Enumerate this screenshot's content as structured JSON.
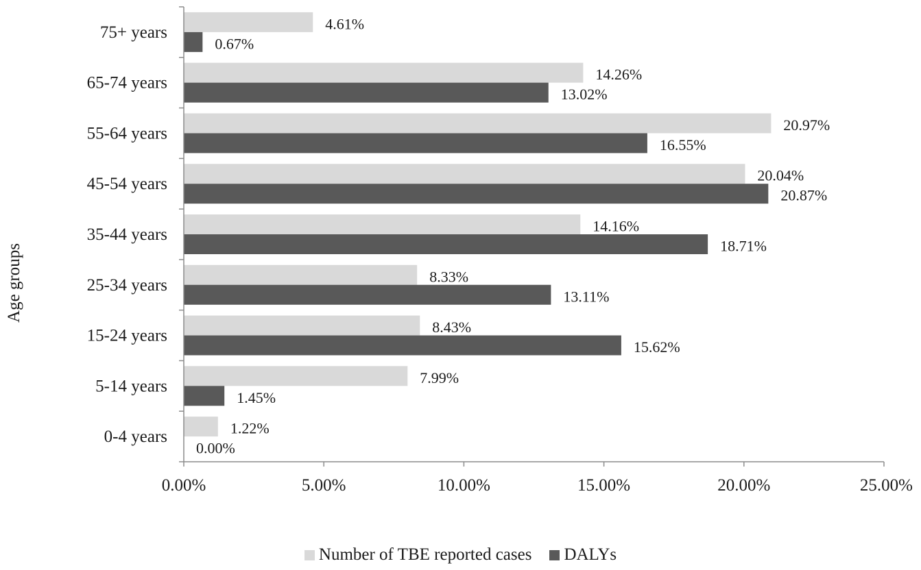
{
  "chart_data": {
    "type": "bar",
    "orientation": "horizontal",
    "title": "",
    "xlabel": "",
    "ylabel": "Age groups",
    "categories": [
      "0-4 years",
      "5-14 years",
      "15-24 years",
      "25-34 years",
      "35-44 years",
      "45-54 years",
      "55-64 years",
      "65-74 years",
      "75+ years"
    ],
    "series": [
      {
        "name": "Number of TBE reported cases",
        "color": "#d9d9d9",
        "values": [
          1.22,
          7.99,
          8.43,
          8.33,
          14.16,
          20.04,
          20.97,
          14.26,
          4.61
        ],
        "labels": [
          "1.22%",
          "7.99%",
          "8.43%",
          "8.33%",
          "14.16%",
          "20.04%",
          "20.97%",
          "14.26%",
          "4.61%"
        ]
      },
      {
        "name": "DALYs",
        "color": "#595959",
        "values": [
          0.0,
          1.45,
          15.62,
          13.11,
          18.71,
          20.87,
          16.55,
          13.02,
          0.67
        ],
        "labels": [
          "0.00%",
          "1.45%",
          "15.62%",
          "13.11%",
          "18.71%",
          "20.87%",
          "16.55%",
          "13.02%",
          "0.67%"
        ]
      }
    ],
    "xlim": [
      0,
      25
    ],
    "xticks": [
      0,
      5,
      10,
      15,
      20,
      25
    ],
    "xtick_labels": [
      "0.00%",
      "5.00%",
      "10.00%",
      "15.00%",
      "20.00%",
      "25.00%"
    ],
    "grid": false,
    "legend_position": "bottom"
  }
}
